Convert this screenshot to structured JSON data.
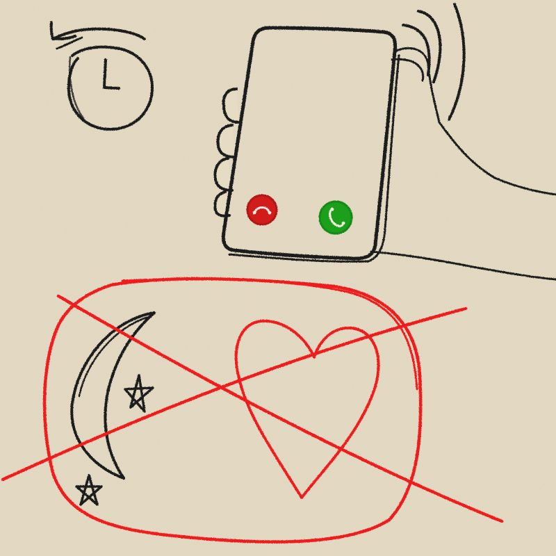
{
  "scene": {
    "clock": {
      "icon": "clock-icon",
      "arrow": "counterclockwise-arrow-icon"
    },
    "phone": {
      "decline_button": {
        "icon": "decline-call-icon",
        "color": "#d21f1f"
      },
      "answer_button": {
        "icon": "answer-call-icon",
        "color": "#1aa01a"
      }
    },
    "crossed_out": {
      "icons": [
        "crescent-moon-icon",
        "star-icon",
        "star-icon",
        "heart-icon"
      ],
      "color": "#ee1c1c"
    },
    "ink_color": "#1a1a1a",
    "paper_color": "#e6dcc4"
  }
}
